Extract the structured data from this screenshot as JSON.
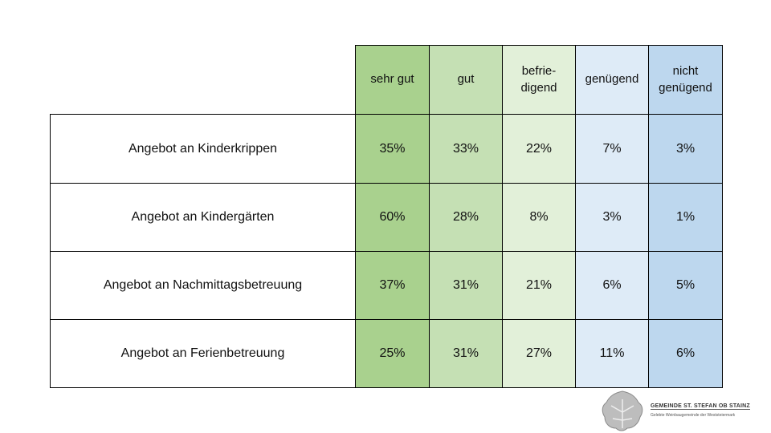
{
  "table": {
    "header": [
      "sehr gut",
      "gut",
      "befrie-\ndigend",
      "genügend",
      "nicht\ngenügend"
    ],
    "rows": [
      [
        "Angebot an Kinderkrippen",
        "35%",
        "33%",
        "22%",
        "7%",
        "3%"
      ],
      [
        "Angebot an Kindergärten",
        "60%",
        "28%",
        "8%",
        "3%",
        "1%"
      ],
      [
        "Angebot an Nachmittagsbetreuung",
        "37%",
        "31%",
        "21%",
        "6%",
        "5%"
      ],
      [
        "Angebot an Ferienbetreuung",
        "25%",
        "31%",
        "27%",
        "11%",
        "6%"
      ]
    ]
  },
  "logo": {
    "title": "GEMEINDE ST. STEFAN OB STAINZ",
    "subtitle": "Gelebte Weinbaugemeinde der Weststeiermark"
  }
}
